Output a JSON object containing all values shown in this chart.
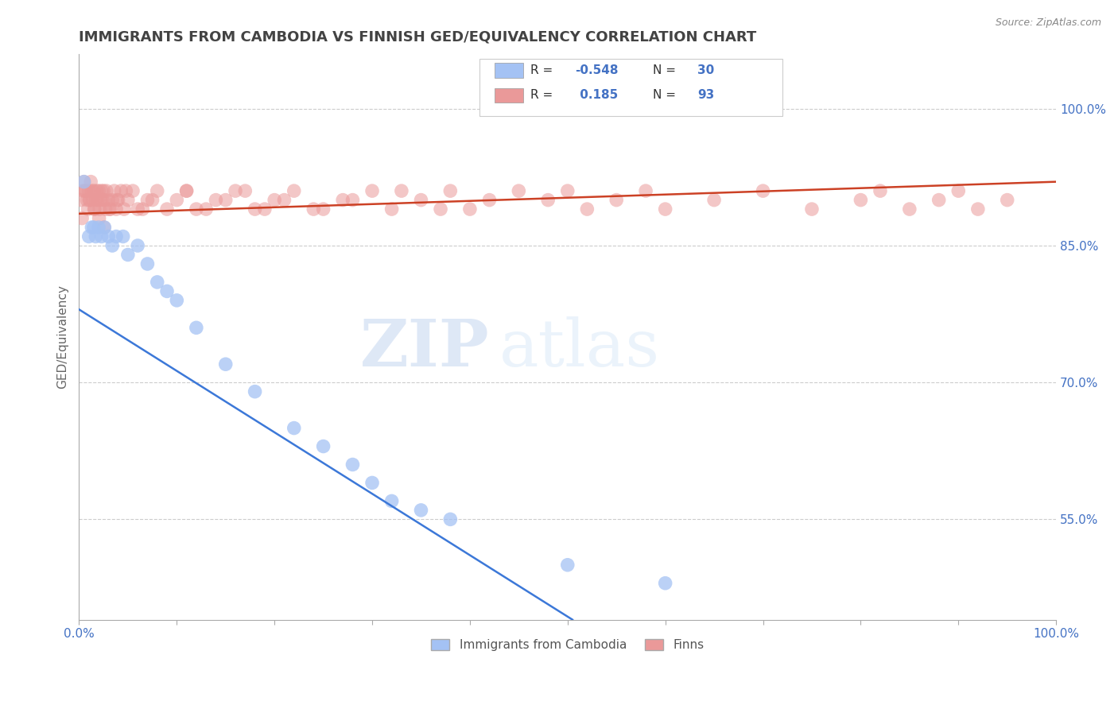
{
  "title": "IMMIGRANTS FROM CAMBODIA VS FINNISH GED/EQUIVALENCY CORRELATION CHART",
  "source": "Source: ZipAtlas.com",
  "ylabel": "GED/Equivalency",
  "xlim": [
    0.0,
    100.0
  ],
  "ylim": [
    44.0,
    106.0
  ],
  "yticks": [
    55.0,
    70.0,
    85.0,
    100.0
  ],
  "ytick_labels": [
    "55.0%",
    "70.0%",
    "85.0%",
    "100.0%"
  ],
  "blue_color": "#a4c2f4",
  "pink_color": "#ea9999",
  "blue_line_color": "#3c78d8",
  "pink_line_color": "#cc4125",
  "legend_blue_label": "Immigrants from Cambodia",
  "legend_pink_label": "Finns",
  "r_blue": -0.548,
  "n_blue": 30,
  "r_pink": 0.185,
  "n_pink": 93,
  "blue_x": [
    0.5,
    1.0,
    1.3,
    1.5,
    1.7,
    2.0,
    2.3,
    2.6,
    3.0,
    3.4,
    3.8,
    4.5,
    5.0,
    6.0,
    7.0,
    8.0,
    9.0,
    10.0,
    12.0,
    15.0,
    18.0,
    22.0,
    25.0,
    28.0,
    30.0,
    32.0,
    35.0,
    38.0,
    50.0,
    60.0
  ],
  "blue_y": [
    92.0,
    86.0,
    87.0,
    87.0,
    86.0,
    87.0,
    86.0,
    87.0,
    86.0,
    85.0,
    86.0,
    86.0,
    84.0,
    85.0,
    83.0,
    81.0,
    80.0,
    79.0,
    76.0,
    72.0,
    69.0,
    65.0,
    63.0,
    61.0,
    59.0,
    57.0,
    56.0,
    55.0,
    50.0,
    48.0
  ],
  "pink_x": [
    0.2,
    0.4,
    0.5,
    0.6,
    0.8,
    1.0,
    1.1,
    1.2,
    1.3,
    1.4,
    1.5,
    1.6,
    1.7,
    1.8,
    1.9,
    2.0,
    2.1,
    2.2,
    2.3,
    2.4,
    2.5,
    2.6,
    2.7,
    2.8,
    3.0,
    3.2,
    3.4,
    3.6,
    3.8,
    4.0,
    4.3,
    4.6,
    5.0,
    5.5,
    6.0,
    7.0,
    8.0,
    9.0,
    10.0,
    11.0,
    12.0,
    14.0,
    16.0,
    18.0,
    20.0,
    22.0,
    25.0,
    28.0,
    30.0,
    32.0,
    35.0,
    38.0,
    40.0,
    42.0,
    45.0,
    48.0,
    50.0,
    52.0,
    55.0,
    58.0,
    60.0,
    65.0,
    70.0,
    75.0,
    80.0,
    82.0,
    85.0,
    88.0,
    90.0,
    92.0,
    95.0,
    0.3,
    0.7,
    0.9,
    1.05,
    1.55,
    2.05,
    2.55,
    3.1,
    3.9,
    4.8,
    6.5,
    7.5,
    11.0,
    13.0,
    15.0,
    17.0,
    19.0,
    21.0,
    24.0,
    27.0,
    33.0,
    37.0
  ],
  "pink_y": [
    90.0,
    91.0,
    92.0,
    91.0,
    90.0,
    91.0,
    90.0,
    92.0,
    91.0,
    90.0,
    91.0,
    89.0,
    90.0,
    91.0,
    90.0,
    91.0,
    89.0,
    90.0,
    91.0,
    90.0,
    91.0,
    90.0,
    89.0,
    91.0,
    90.0,
    89.0,
    90.0,
    91.0,
    89.0,
    90.0,
    91.0,
    89.0,
    90.0,
    91.0,
    89.0,
    90.0,
    91.0,
    89.0,
    90.0,
    91.0,
    89.0,
    90.0,
    91.0,
    89.0,
    90.0,
    91.0,
    89.0,
    90.0,
    91.0,
    89.0,
    90.0,
    91.0,
    89.0,
    90.0,
    91.0,
    90.0,
    91.0,
    89.0,
    90.0,
    91.0,
    89.0,
    90.0,
    91.0,
    89.0,
    90.0,
    91.0,
    89.0,
    90.0,
    91.0,
    89.0,
    90.0,
    88.0,
    91.0,
    89.0,
    90.0,
    89.0,
    88.0,
    87.0,
    89.0,
    90.0,
    91.0,
    89.0,
    90.0,
    91.0,
    89.0,
    90.0,
    91.0,
    89.0,
    90.0,
    89.0,
    90.0,
    91.0,
    89.0
  ],
  "blue_line_x0": 0.0,
  "blue_line_y0": 78.0,
  "blue_line_x1": 50.5,
  "blue_line_y1": 44.0,
  "pink_line_x0": 0.0,
  "pink_line_y0": 88.5,
  "pink_line_x1": 100.0,
  "pink_line_y1": 92.0,
  "watermark_zip": "ZIP",
  "watermark_atlas": "atlas",
  "background_color": "#ffffff",
  "grid_color": "#cccccc",
  "title_color": "#434343",
  "axis_label_color": "#666666",
  "tick_color": "#4472c4",
  "title_fontsize": 13,
  "label_fontsize": 11,
  "tick_fontsize": 11,
  "source_text": "Source: ZipAtlas.com"
}
